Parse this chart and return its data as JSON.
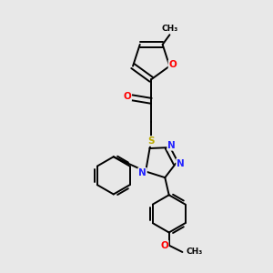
{
  "background_color": "#e8e8e8",
  "atom_colors": {
    "C": "#000000",
    "N": "#2222ff",
    "O": "#ff0000",
    "S": "#bbaa00"
  },
  "bond_color": "#000000",
  "bond_width": 1.4,
  "figsize": [
    3.0,
    3.0
  ],
  "dpi": 100,
  "xlim": [
    0,
    10
  ],
  "ylim": [
    0,
    10
  ]
}
